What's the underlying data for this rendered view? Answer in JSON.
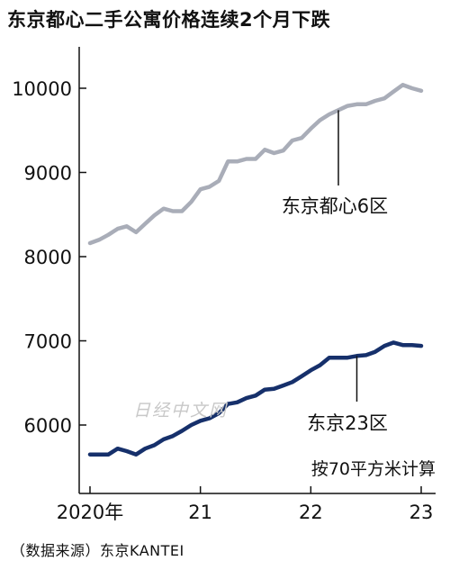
{
  "title": "东京都心二手公寓价格连续2个月下跌",
  "source": "（数据来源）东京KANTEI",
  "watermark": "日经中文网",
  "chart_data": {
    "type": "line",
    "ylim": [
      5400,
      10500
    ],
    "yticks": [
      6000,
      7000,
      8000,
      9000,
      10000
    ],
    "xlim": [
      2020.0,
      2023.0
    ],
    "xticks": [
      {
        "value": 2020.0,
        "label": "2020年"
      },
      {
        "value": 2021.0,
        "label": "21"
      },
      {
        "value": 2022.0,
        "label": "22"
      },
      {
        "value": 2023.0,
        "label": "23"
      }
    ],
    "unit_note": "按70平方米计算",
    "grid": false,
    "series": [
      {
        "name": "东京都心6区",
        "color": "#a9adb8",
        "x": [
          2020.0,
          2020.083,
          2020.167,
          2020.25,
          2020.333,
          2020.417,
          2020.5,
          2020.583,
          2020.667,
          2020.75,
          2020.833,
          2020.917,
          2021.0,
          2021.083,
          2021.167,
          2021.25,
          2021.333,
          2021.417,
          2021.5,
          2021.583,
          2021.667,
          2021.75,
          2021.833,
          2021.917,
          2022.0,
          2022.083,
          2022.167,
          2022.25,
          2022.333,
          2022.417,
          2022.5,
          2022.583,
          2022.667,
          2022.75,
          2022.833,
          2022.917,
          2023.0
        ],
        "values": [
          8160,
          8200,
          8260,
          8330,
          8360,
          8290,
          8390,
          8490,
          8570,
          8540,
          8540,
          8650,
          8800,
          8830,
          8900,
          9130,
          9130,
          9160,
          9160,
          9270,
          9230,
          9260,
          9380,
          9410,
          9520,
          9620,
          9690,
          9740,
          9790,
          9810,
          9810,
          9850,
          9880,
          9960,
          10040,
          10000,
          9970
        ]
      },
      {
        "name": "东京23区",
        "color": "#16306b",
        "x": [
          2020.0,
          2020.083,
          2020.167,
          2020.25,
          2020.333,
          2020.417,
          2020.5,
          2020.583,
          2020.667,
          2020.75,
          2020.833,
          2020.917,
          2021.0,
          2021.083,
          2021.167,
          2021.25,
          2021.333,
          2021.417,
          2021.5,
          2021.583,
          2021.667,
          2021.75,
          2021.833,
          2021.917,
          2022.0,
          2022.083,
          2022.167,
          2022.25,
          2022.333,
          2022.417,
          2022.5,
          2022.583,
          2022.667,
          2022.75,
          2022.833,
          2022.917,
          2023.0
        ],
        "values": [
          5650,
          5650,
          5650,
          5720,
          5690,
          5650,
          5720,
          5760,
          5830,
          5870,
          5930,
          6000,
          6050,
          6080,
          6140,
          6250,
          6270,
          6320,
          6350,
          6420,
          6430,
          6470,
          6510,
          6580,
          6650,
          6710,
          6800,
          6800,
          6800,
          6820,
          6830,
          6870,
          6940,
          6980,
          6950,
          6950,
          6940
        ]
      }
    ],
    "annotations": [
      {
        "text": "东京都心6区",
        "series": 0,
        "x": 2022.25
      },
      {
        "text": "东京23区",
        "series": 1,
        "x": 2022.417
      }
    ]
  }
}
